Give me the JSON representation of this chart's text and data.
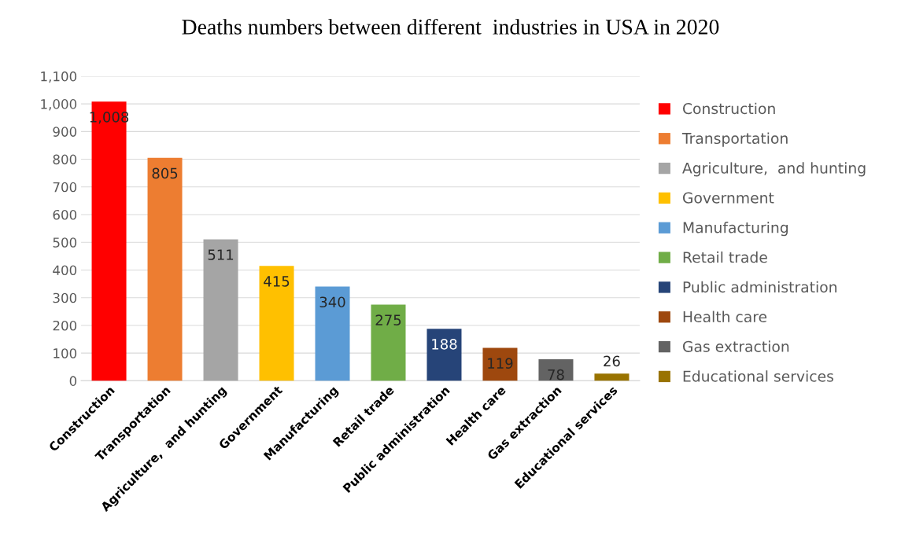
{
  "chart_data": {
    "type": "bar",
    "title": "Deaths numbers between different  industries in USA in 2020",
    "categories": [
      "Construction",
      "Transportation",
      "Agriculture,  and hunting",
      "Government",
      "Manufacturing",
      "Retail trade",
      "Public administration",
      "Health care",
      "Gas extraction",
      "Educational services"
    ],
    "series": [
      {
        "name": "Construction",
        "color": "#ff0000",
        "values": [
          1008,
          null,
          null,
          null,
          null,
          null,
          null,
          null,
          null,
          null
        ],
        "value_labels": [
          "1,008",
          null,
          null,
          null,
          null,
          null,
          null,
          null,
          null,
          null
        ]
      },
      {
        "name": "Transportation",
        "color": "#ed7d31",
        "values": [
          null,
          805,
          null,
          null,
          null,
          null,
          null,
          null,
          null,
          null
        ],
        "value_labels": [
          null,
          "805",
          null,
          null,
          null,
          null,
          null,
          null,
          null,
          null
        ]
      },
      {
        "name": "Agriculture,  and hunting",
        "color": "#a5a5a5",
        "values": [
          null,
          null,
          511,
          null,
          null,
          null,
          null,
          null,
          null,
          null
        ],
        "value_labels": [
          null,
          null,
          "511",
          null,
          null,
          null,
          null,
          null,
          null,
          null
        ]
      },
      {
        "name": "Government",
        "color": "#ffc000",
        "values": [
          null,
          null,
          null,
          415,
          null,
          null,
          null,
          null,
          null,
          null
        ],
        "value_labels": [
          null,
          null,
          null,
          "415",
          null,
          null,
          null,
          null,
          null,
          null
        ]
      },
      {
        "name": "Manufacturing",
        "color": "#5b9bd5",
        "values": [
          null,
          null,
          null,
          null,
          340,
          null,
          null,
          null,
          null,
          null
        ],
        "value_labels": [
          null,
          null,
          null,
          null,
          "340",
          null,
          null,
          null,
          null,
          null
        ]
      },
      {
        "name": "Retail trade",
        "color": "#70ad47",
        "values": [
          null,
          null,
          null,
          null,
          null,
          275,
          null,
          null,
          null,
          null
        ],
        "value_labels": [
          null,
          null,
          null,
          null,
          null,
          "275",
          null,
          null,
          null,
          null
        ]
      },
      {
        "name": "Public administration",
        "color": "#264478",
        "values": [
          null,
          null,
          null,
          null,
          null,
          null,
          188,
          null,
          null,
          null
        ],
        "value_labels": [
          null,
          null,
          null,
          null,
          null,
          null,
          "188",
          null,
          null,
          null
        ]
      },
      {
        "name": "Health care",
        "color": "#9e480e",
        "values": [
          null,
          null,
          null,
          null,
          null,
          null,
          null,
          119,
          null,
          null
        ],
        "value_labels": [
          null,
          null,
          null,
          null,
          null,
          null,
          null,
          "119",
          null,
          null
        ]
      },
      {
        "name": "Gas extraction",
        "color": "#636363",
        "values": [
          null,
          null,
          null,
          null,
          null,
          null,
          null,
          null,
          78,
          null
        ],
        "value_labels": [
          null,
          null,
          null,
          null,
          null,
          null,
          null,
          null,
          "78",
          null
        ]
      },
      {
        "name": "Educational services",
        "color": "#997300",
        "values": [
          null,
          null,
          null,
          null,
          null,
          null,
          null,
          null,
          null,
          26
        ],
        "value_labels": [
          null,
          null,
          null,
          null,
          null,
          null,
          null,
          null,
          null,
          "26"
        ]
      }
    ],
    "ylim": [
      0,
      1100
    ],
    "yticks": [
      0,
      100,
      200,
      300,
      400,
      500,
      600,
      700,
      800,
      900,
      {
        "value": 1000,
        "label": "1,000"
      },
      {
        "value": 1100,
        "label": "1,100"
      }
    ],
    "grid": "y",
    "legend": "right"
  }
}
